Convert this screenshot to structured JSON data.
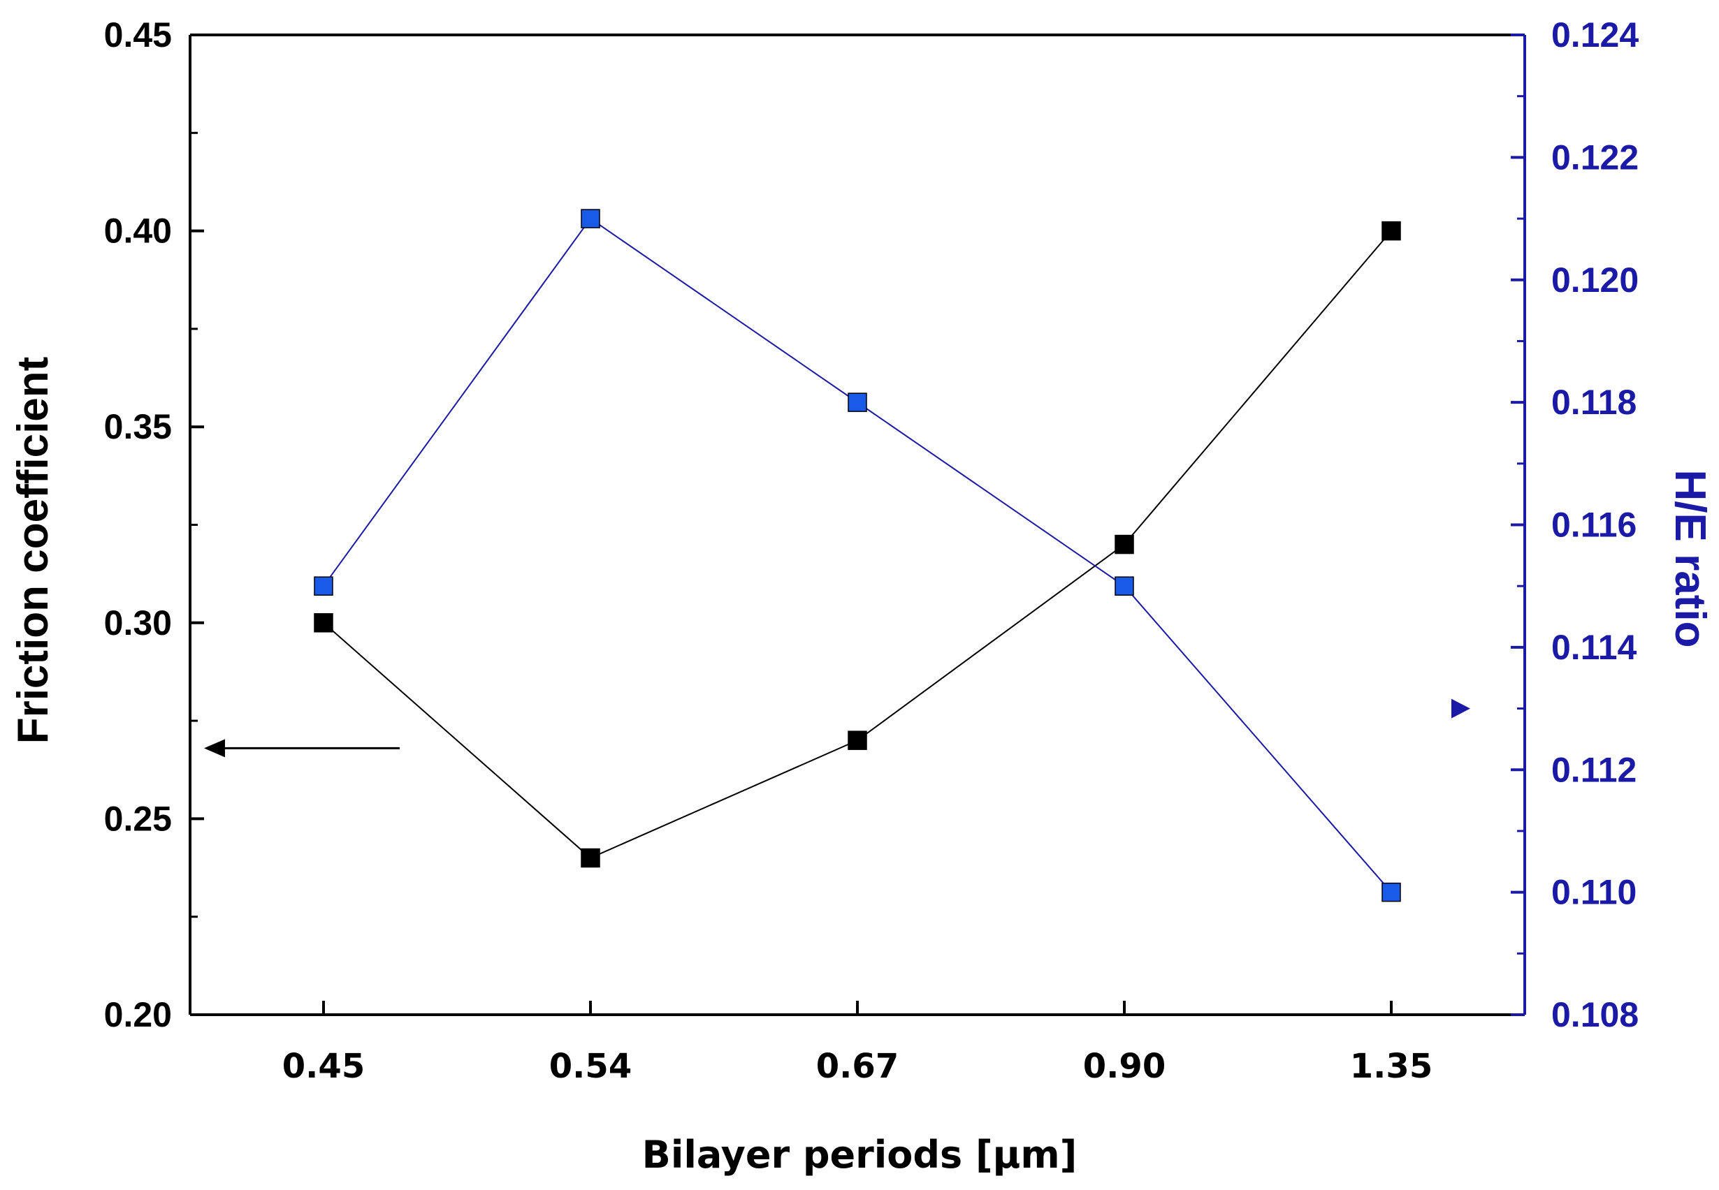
{
  "chart_data": {
    "type": "line",
    "title": "",
    "xlabel": "Bilayer periods [μm]",
    "categories": [
      "0.45",
      "0.54",
      "0.67",
      "0.90",
      "1.35"
    ],
    "y_left": {
      "label": "Friction coefficient",
      "range": [
        0.2,
        0.45
      ],
      "ticks": [
        "0.20",
        "0.25",
        "0.30",
        "0.35",
        "0.40",
        "0.45"
      ],
      "color": "#000000"
    },
    "y_right": {
      "label": "H/E ratio",
      "range": [
        0.108,
        0.124
      ],
      "ticks": [
        "0.108",
        "0.110",
        "0.112",
        "0.114",
        "0.116",
        "0.118",
        "0.120",
        "0.122",
        "0.124"
      ],
      "color": "#1a1aa6"
    },
    "series": [
      {
        "axis": "left",
        "color": "#000000",
        "values": [
          0.3,
          0.24,
          0.27,
          0.32,
          0.4
        ]
      },
      {
        "axis": "right",
        "color": "#1a5ae8",
        "values": [
          0.115,
          0.121,
          0.118,
          0.115,
          0.11
        ]
      }
    ],
    "annotations": [
      {
        "type": "arrow",
        "points_to": "left-axis",
        "color": "#000000"
      },
      {
        "type": "arrow",
        "points_to": "right-axis",
        "color": "#1a1aa6"
      }
    ],
    "grid": false,
    "legend": "none"
  }
}
